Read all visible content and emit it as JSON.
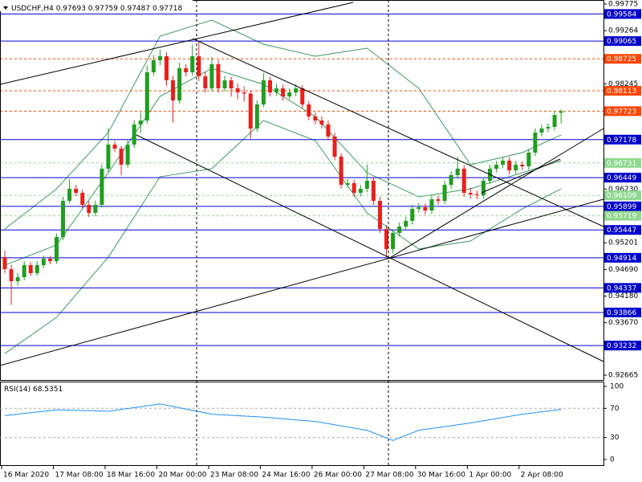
{
  "chart_data": {
    "type": "candlestick",
    "symbol": "USDCHF,H4",
    "up_color": "#1f9e1f",
    "down_color": "#e8201c",
    "ylim": [
      0.92573,
      0.99852
    ],
    "yticks": [
      0.99775,
      0.99264,
      0.98245,
      {
        "value": 0.9623,
        "label": "0.96230"
      },
      0.95201,
      {
        "value": 0.9469,
        "label": "0.94690"
      },
      {
        "value": 0.9418,
        "label": "0.94180"
      },
      {
        "value": 0.9367,
        "label": "0.93670"
      },
      0.92665
    ],
    "xticks": [
      {
        "value": 0,
        "label": "16 Mar 2020"
      },
      {
        "value": 8,
        "label": "17 Mar 08:00"
      },
      {
        "value": 16,
        "label": "18 Mar 16:00"
      },
      {
        "value": 24,
        "label": "20 Mar 00:00"
      },
      {
        "value": 32,
        "label": "23 Mar 08:00"
      },
      {
        "value": 40,
        "label": "24 Mar 16:00"
      },
      {
        "value": 48,
        "label": "26 Mar 00:00"
      },
      {
        "value": 56,
        "label": "27 Mar 08:00"
      },
      {
        "value": 64,
        "label": "30 Mar 16:00"
      },
      {
        "value": 72,
        "label": "1 Apr 00:00"
      },
      {
        "value": 80,
        "label": "2 Apr 08:00"
      }
    ],
    "ohlc": [
      [
        0.94927,
        0.9505,
        0.9462,
        0.94696
      ],
      [
        0.94696,
        0.9478,
        0.9401,
        0.94465
      ],
      [
        0.94465,
        0.9462,
        0.9438,
        0.94542
      ],
      [
        0.94542,
        0.9485,
        0.9448,
        0.94773
      ],
      [
        0.94773,
        0.9483,
        0.9456,
        0.94619
      ],
      [
        0.94619,
        0.9485,
        0.9457,
        0.94773
      ],
      [
        0.94773,
        0.9496,
        0.9472,
        0.94896
      ],
      [
        0.94896,
        0.9495,
        0.9479,
        0.94849
      ],
      [
        0.94849,
        0.9538,
        0.948,
        0.95312
      ],
      [
        0.95312,
        0.9608,
        0.9525,
        0.96004
      ],
      [
        0.96004,
        0.9642,
        0.9595,
        0.96235
      ],
      [
        0.96235,
        0.9631,
        0.9609,
        0.96158
      ],
      [
        0.96158,
        0.9622,
        0.9586,
        0.95928
      ],
      [
        0.95928,
        0.96,
        0.957,
        0.95774
      ],
      [
        0.95774,
        0.9601,
        0.9571,
        0.95928
      ],
      [
        0.95928,
        0.967,
        0.9588,
        0.9662
      ],
      [
        0.9662,
        0.974,
        0.9656,
        0.97082
      ],
      [
        0.97082,
        0.9715,
        0.9694,
        0.97005
      ],
      [
        0.97005,
        0.9706,
        0.965,
        0.96697
      ],
      [
        0.96697,
        0.9716,
        0.9664,
        0.97082
      ],
      [
        0.97082,
        0.9755,
        0.9702,
        0.97467
      ],
      [
        0.97467,
        0.977,
        0.973,
        0.97543
      ],
      [
        0.97543,
        0.986,
        0.9748,
        0.98467
      ],
      [
        0.98467,
        0.988,
        0.984,
        0.98698
      ],
      [
        0.98698,
        0.989,
        0.986,
        0.98775
      ],
      [
        0.98775,
        0.9885,
        0.982,
        0.98313
      ],
      [
        0.98313,
        0.984,
        0.975,
        0.97928
      ],
      [
        0.97928,
        0.9865,
        0.9787,
        0.98544
      ],
      [
        0.98544,
        0.9862,
        0.9839,
        0.98467
      ],
      [
        0.98467,
        0.99,
        0.984,
        0.98775
      ],
      [
        0.98775,
        0.9905,
        0.983,
        0.9839
      ],
      [
        0.9839,
        0.9848,
        0.9808,
        0.98159
      ],
      [
        0.98159,
        0.9876,
        0.981,
        0.98621
      ],
      [
        0.98621,
        0.987,
        0.9808,
        0.98159
      ],
      [
        0.98159,
        0.984,
        0.981,
        0.98313
      ],
      [
        0.98313,
        0.9838,
        0.98,
        0.98159
      ],
      [
        0.98159,
        0.9825,
        0.9795,
        0.98082
      ],
      [
        0.98082,
        0.982,
        0.979,
        0.9806
      ],
      [
        0.9806,
        0.9812,
        0.972,
        0.9739
      ],
      [
        0.9739,
        0.9793,
        0.9733,
        0.97851
      ],
      [
        0.97851,
        0.9845,
        0.978,
        0.98313
      ],
      [
        0.98313,
        0.9838,
        0.98,
        0.98082
      ],
      [
        0.98082,
        0.9825,
        0.9802,
        0.98159
      ],
      [
        0.98159,
        0.9823,
        0.9793,
        0.98005
      ],
      [
        0.98005,
        0.9816,
        0.9795,
        0.98082
      ],
      [
        0.98082,
        0.9824,
        0.9801,
        0.98159
      ],
      [
        0.98159,
        0.9822,
        0.9778,
        0.97851
      ],
      [
        0.97851,
        0.9792,
        0.9755,
        0.9762
      ],
      [
        0.9762,
        0.977,
        0.9747,
        0.97543
      ],
      [
        0.97543,
        0.9762,
        0.9739,
        0.97467
      ],
      [
        0.97467,
        0.9754,
        0.9716,
        0.97236
      ],
      [
        0.97236,
        0.9731,
        0.9678,
        0.96851
      ],
      [
        0.96851,
        0.9692,
        0.9624,
        0.96312
      ],
      [
        0.96312,
        0.9642,
        0.9626,
        0.96343
      ],
      [
        0.96343,
        0.9641,
        0.9608,
        0.96158
      ],
      [
        0.96158,
        0.9631,
        0.9609,
        0.96235
      ],
      [
        0.96235,
        0.967,
        0.9617,
        0.96389
      ],
      [
        0.96389,
        0.9646,
        0.9593,
        0.96004
      ],
      [
        0.96004,
        0.9608,
        0.9539,
        0.95466
      ],
      [
        0.95466,
        0.9554,
        0.949,
        0.95081
      ],
      [
        0.95081,
        0.9546,
        0.95,
        0.95389
      ],
      [
        0.95389,
        0.9559,
        0.9532,
        0.95512
      ],
      [
        0.95512,
        0.957,
        0.9544,
        0.9562
      ],
      [
        0.9562,
        0.9593,
        0.9555,
        0.95851
      ],
      [
        0.95851,
        0.9596,
        0.9578,
        0.95881
      ],
      [
        0.95881,
        0.9595,
        0.9574,
        0.9582
      ],
      [
        0.9582,
        0.9611,
        0.9575,
        0.96035
      ],
      [
        0.96035,
        0.961,
        0.9593,
        0.96004
      ],
      [
        0.96004,
        0.9639,
        0.9594,
        0.96312
      ],
      [
        0.96312,
        0.9657,
        0.9624,
        0.96497
      ],
      [
        0.96497,
        0.9685,
        0.9643,
        0.9662
      ],
      [
        0.9662,
        0.9669,
        0.9608,
        0.96158
      ],
      [
        0.96158,
        0.9625,
        0.9605,
        0.96128
      ],
      [
        0.96128,
        0.962,
        0.9604,
        0.96112
      ],
      [
        0.96112,
        0.9646,
        0.9605,
        0.96389
      ],
      [
        0.96389,
        0.967,
        0.9632,
        0.9662
      ],
      [
        0.9662,
        0.9677,
        0.9655,
        0.96697
      ],
      [
        0.96697,
        0.9685,
        0.9663,
        0.96774
      ],
      [
        0.96774,
        0.9684,
        0.9651,
        0.96589
      ],
      [
        0.96589,
        0.9677,
        0.9652,
        0.96697
      ],
      [
        0.96697,
        0.9676,
        0.9659,
        0.96666
      ],
      [
        0.96666,
        0.97,
        0.966,
        0.96928
      ],
      [
        0.96928,
        0.9739,
        0.9686,
        0.97313
      ],
      [
        0.97313,
        0.9746,
        0.9724,
        0.9739
      ],
      [
        0.9739,
        0.9749,
        0.9732,
        0.9742
      ],
      [
        0.9742,
        0.9772,
        0.9735,
        0.9765
      ],
      [
        0.97693,
        0.97759,
        0.97487,
        0.97718
      ]
    ],
    "bollinger": {
      "color": "#3c9a5f",
      "x": [
        0,
        8,
        16,
        24,
        32,
        40,
        48,
        56,
        64,
        72,
        80,
        86
      ],
      "upper": [
        0.95466,
        0.96235,
        0.97313,
        0.99159,
        0.99467,
        0.99006,
        0.98775,
        0.98929,
        0.98159,
        0.96697,
        0.96928,
        0.97266
      ],
      "middle": [
        0.94773,
        0.95158,
        0.96543,
        0.98005,
        0.98544,
        0.98236,
        0.9762,
        0.96543,
        0.96081,
        0.96235,
        0.96543,
        0.96774
      ],
      "lower": [
        0.9308,
        0.93773,
        0.94927,
        0.96466,
        0.9662,
        0.97543,
        0.97159,
        0.95774,
        0.95081,
        0.95235,
        0.95851,
        0.96235
      ]
    },
    "levels": [
      {
        "value": 0.99584,
        "color": "#0000cd",
        "style": "solid"
      },
      {
        "value": 0.99065,
        "color": "#0000cd",
        "style": "solid"
      },
      {
        "value": 0.98725,
        "color": "#ff4500",
        "style": "dashed"
      },
      {
        "value": 0.98113,
        "color": "#ff4500",
        "style": "dashed"
      },
      {
        "value": 0.97723,
        "color": "#ff4500",
        "style": "dashed"
      },
      {
        "value": 0.97178,
        "color": "#0000cd",
        "style": "solid"
      },
      {
        "value": 0.96731,
        "color": "#90d890",
        "style": "dashed"
      },
      {
        "value": 0.96449,
        "color": "#0000cd",
        "style": "solid"
      },
      {
        "value": 0.96109,
        "color": "#90d890",
        "style": "dashed"
      },
      {
        "value": 0.95899,
        "color": "#0000cd",
        "style": "solid"
      },
      {
        "value": 0.95719,
        "color": "#90d890",
        "style": "dashed"
      },
      {
        "value": 0.95447,
        "color": "#0000cd",
        "style": "solid"
      },
      {
        "value": 0.94914,
        "color": "#0000cd",
        "style": "solid"
      },
      {
        "value": 0.94337,
        "color": "#0000cd",
        "style": "solid"
      },
      {
        "value": 0.93866,
        "color": "#0000cd",
        "style": "solid"
      },
      {
        "value": 0.93232,
        "color": "#0000cd",
        "style": "solid"
      }
    ],
    "rsi": {
      "name": "RSI(14)",
      "color": "#1e90ff",
      "ylim": [
        0,
        100
      ],
      "yticks": [
        100,
        70,
        30,
        0
      ],
      "x": [
        0,
        8,
        16,
        24,
        32,
        40,
        48,
        56,
        60,
        64,
        72,
        80,
        86
      ],
      "values": [
        60,
        68,
        66,
        76,
        62,
        58,
        52,
        40,
        26,
        40,
        50,
        62,
        68.5351
      ]
    }
  }
}
